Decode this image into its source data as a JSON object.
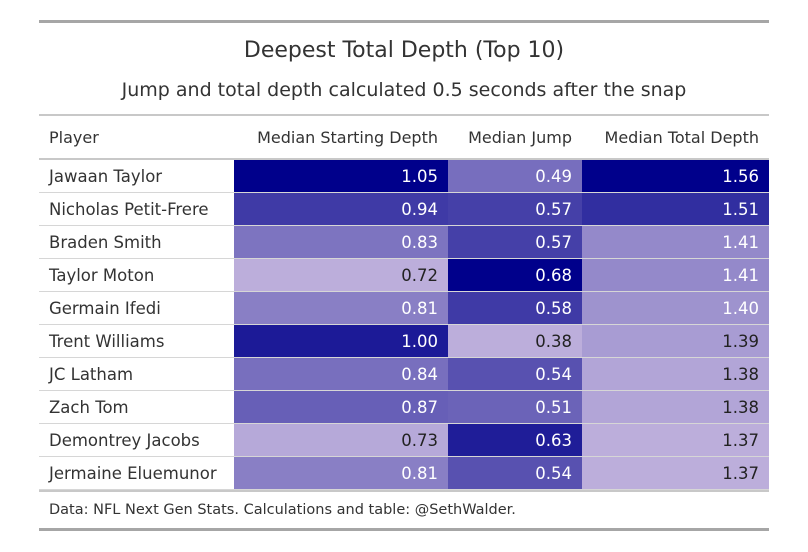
{
  "chart_data": {
    "type": "table",
    "title": "Deepest Total Depth (Top 10)",
    "subtitle": "Jump and total depth calculated 0.5 seconds after the snap",
    "columns": [
      "Player",
      "Median Starting Depth",
      "Median Jump",
      "Median Total Depth"
    ],
    "rows": [
      {
        "player": "Jawaan Taylor",
        "start": "1.05",
        "jump": "0.49",
        "total": "1.56"
      },
      {
        "player": "Nicholas Petit-Frere",
        "start": "0.94",
        "jump": "0.57",
        "total": "1.51"
      },
      {
        "player": "Braden Smith",
        "start": "0.83",
        "jump": "0.57",
        "total": "1.41"
      },
      {
        "player": "Taylor Moton",
        "start": "0.72",
        "jump": "0.68",
        "total": "1.41"
      },
      {
        "player": "Germain Ifedi",
        "start": "0.81",
        "jump": "0.58",
        "total": "1.40"
      },
      {
        "player": "Trent Williams",
        "start": "1.00",
        "jump": "0.38",
        "total": "1.39"
      },
      {
        "player": "JC Latham",
        "start": "0.84",
        "jump": "0.54",
        "total": "1.38"
      },
      {
        "player": "Zach Tom",
        "start": "0.87",
        "jump": "0.51",
        "total": "1.38"
      },
      {
        "player": "Demontrey Jacobs",
        "start": "0.73",
        "jump": "0.63",
        "total": "1.37"
      },
      {
        "player": "Jermaine Eluemunor",
        "start": "0.81",
        "jump": "0.54",
        "total": "1.37"
      }
    ],
    "source": "Data: NFL Next Gen Stats. Calculations and table: @SethWalder.",
    "colors": {
      "scale_low": "#bcaedb",
      "scale_high": "#00008b",
      "text_light": "#ffffff",
      "text_dark": "#222222"
    }
  }
}
